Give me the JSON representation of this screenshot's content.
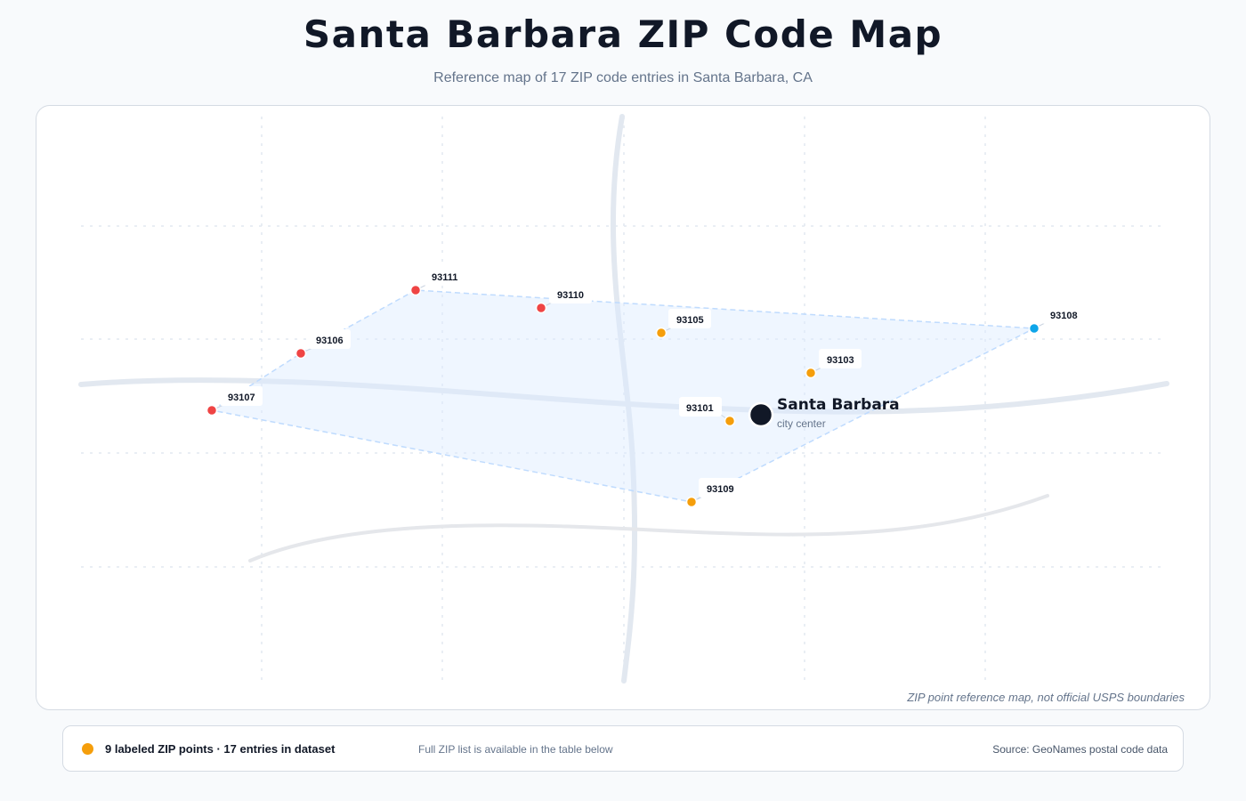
{
  "header": {
    "title": "Santa Barbara ZIP Code Map",
    "subtitle": "Reference map of 17 ZIP code entries in Santa Barbara, CA"
  },
  "map": {
    "disclaimer": "ZIP point reference map, not official USPS boundaries",
    "city": {
      "name": "Santa Barbara",
      "sublabel": "city center"
    },
    "zip_points": [
      {
        "zip": "93107",
        "color": "#ef4444"
      },
      {
        "zip": "93106",
        "color": "#ef4444"
      },
      {
        "zip": "93111",
        "color": "#ef4444"
      },
      {
        "zip": "93110",
        "color": "#ef4444"
      },
      {
        "zip": "93105",
        "color": "#f59e0b"
      },
      {
        "zip": "93108",
        "color": "#0ea5e9"
      },
      {
        "zip": "93103",
        "color": "#f59e0b"
      },
      {
        "zip": "93101",
        "color": "#f59e0b"
      },
      {
        "zip": "93109",
        "color": "#f59e0b"
      }
    ]
  },
  "legend": {
    "dot_color": "#f59e0b",
    "count_text": "9 labeled ZIP points · 17 entries in dataset",
    "note": "Full ZIP list is available in the table below",
    "source": "Source: GeoNames postal code data"
  }
}
